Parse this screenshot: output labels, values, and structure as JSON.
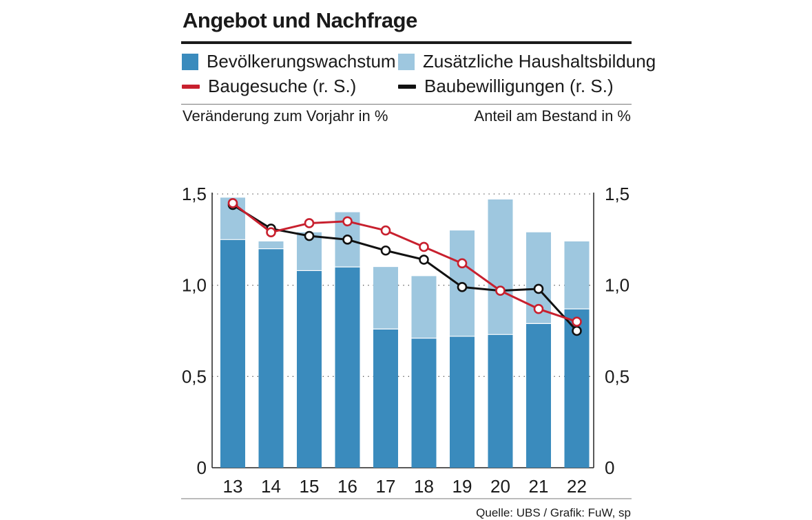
{
  "chart_data": {
    "type": "bar",
    "title": "Angebot und Nachfrage",
    "left_axis_label": "Veränderung zum Vorjahr in %",
    "right_axis_label": "Anteil am Bestand in %",
    "categories": [
      "13",
      "14",
      "15",
      "16",
      "17",
      "18",
      "19",
      "20",
      "21",
      "22"
    ],
    "y_ticks": [
      "0",
      "0,5",
      "1,0",
      "1,5"
    ],
    "y_tick_values": [
      0,
      0.5,
      1.0,
      1.5
    ],
    "ylim": [
      0,
      1.5
    ],
    "legend": {
      "pop": "Bevölkerungswachstum",
      "hh": "Zusätzliche Haushaltsbildung",
      "bg": "Baugesuche (r. S.)",
      "bb": "Baubewilligungen (r. S.)"
    },
    "series": [
      {
        "name": "Bevölkerungswachstum",
        "kind": "bar-stacked",
        "color": "#3a8bbd",
        "values": [
          1.25,
          1.2,
          1.08,
          1.1,
          0.76,
          0.71,
          0.72,
          0.73,
          0.79,
          0.87
        ]
      },
      {
        "name": "Zusätzliche Haushaltsbildung",
        "kind": "bar-stacked",
        "color": "#9ec7df",
        "values": [
          0.23,
          0.04,
          0.21,
          0.3,
          0.34,
          0.34,
          0.58,
          0.74,
          0.5,
          0.37
        ]
      },
      {
        "name": "Baugesuche (r. S.)",
        "kind": "line",
        "color": "#c8202e",
        "values": [
          1.45,
          1.29,
          1.34,
          1.35,
          1.3,
          1.21,
          1.12,
          0.97,
          0.87,
          0.8
        ]
      },
      {
        "name": "Baubewilligungen (r. S.)",
        "kind": "line",
        "color": "#111111",
        "values": [
          1.44,
          1.31,
          1.27,
          1.25,
          1.19,
          1.14,
          0.99,
          0.97,
          0.98,
          0.75
        ]
      }
    ],
    "grid": "dotted",
    "legend_position": "top",
    "source": "Quelle: UBS / Grafik: FuW, sp"
  }
}
